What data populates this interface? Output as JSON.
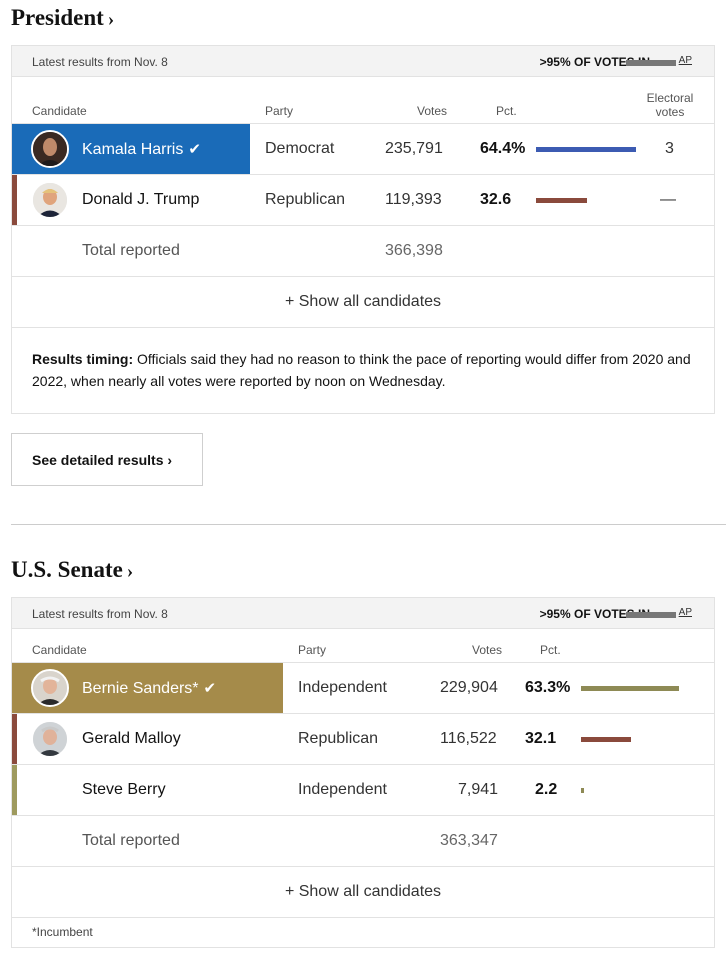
{
  "president": {
    "title": "President",
    "chevron": "›",
    "header": {
      "latest": "Latest results from Nov. 8",
      "votes_in": ">95% OF VOTES IN",
      "ap": "AP"
    },
    "columns": {
      "candidate": "Candidate",
      "party": "Party",
      "votes": "Votes",
      "pct": "Pct.",
      "electoral": "Electoral votes"
    },
    "rows": [
      {
        "name": "Kamala Harris",
        "winner": true,
        "check": "✔",
        "party": "Democrat",
        "votes": "235,791",
        "pct": "64.4%",
        "pct_value": 64.4,
        "electoral": "3",
        "color": "#1a6bb8",
        "bar_color": "#3c5bb2",
        "avatar_icon": "candidate-photo"
      },
      {
        "name": "Donald J. Trump",
        "winner": false,
        "party": "Republican",
        "votes": "119,393",
        "pct": "32.6",
        "pct_value": 32.6,
        "electoral": "—",
        "color": "#8a4a3c",
        "bar_color": "#8a4a3c",
        "avatar_icon": "candidate-photo"
      }
    ],
    "total_label": "Total reported",
    "total_votes": "366,398",
    "show_all": "+ Show all candidates",
    "timing_label": "Results timing:",
    "timing_text": " Officials said they had no reason to think the pace of reporting would differ from 2020 and 2022, when nearly all votes were reported by noon on Wednesday.",
    "detail_button": "See detailed results ›"
  },
  "senate": {
    "title": "U.S. Senate",
    "chevron": "›",
    "header": {
      "latest": "Latest results from Nov. 8",
      "votes_in": ">95% OF VOTES IN",
      "ap": "AP"
    },
    "columns": {
      "candidate": "Candidate",
      "party": "Party",
      "votes": "Votes",
      "pct": "Pct."
    },
    "rows": [
      {
        "name": "Bernie Sanders*",
        "winner": true,
        "check": "✔",
        "party": "Independent",
        "votes": "229,904",
        "pct": "63.3%",
        "pct_value": 63.3,
        "color": "#a58b4a",
        "bar_color": "#8e8a55",
        "avatar_icon": "candidate-photo"
      },
      {
        "name": "Gerald Malloy",
        "winner": false,
        "party": "Republican",
        "votes": "116,522",
        "pct": "32.1",
        "pct_value": 32.1,
        "color": "#8a4a3c",
        "bar_color": "#8a4a3c",
        "avatar_icon": "candidate-photo"
      },
      {
        "name": "Steve Berry",
        "winner": false,
        "party": "Independent",
        "votes": "7,941",
        "pct": "2.2",
        "pct_value": 2.2,
        "color": "#9e9a5e",
        "bar_color": "#8e8a55",
        "avatar_icon": ""
      }
    ],
    "total_label": "Total reported",
    "total_votes": "363,347",
    "show_all": "+ Show all candidates",
    "footnote": "*Incumbent"
  }
}
